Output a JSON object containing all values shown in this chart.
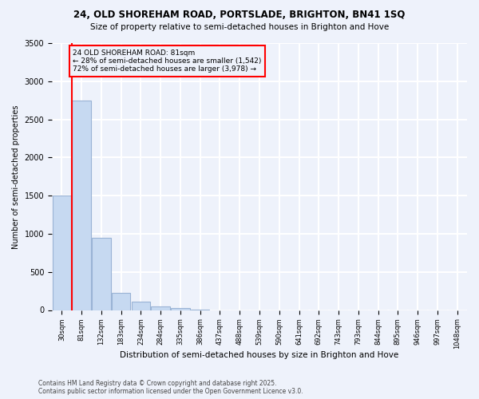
{
  "title1": "24, OLD SHOREHAM ROAD, PORTSLADE, BRIGHTON, BN41 1SQ",
  "title2": "Size of property relative to semi-detached houses in Brighton and Hove",
  "xlabel": "Distribution of semi-detached houses by size in Brighton and Hove",
  "ylabel": "Number of semi-detached properties",
  "bins": [
    "30sqm",
    "81sqm",
    "132sqm",
    "183sqm",
    "234sqm",
    "284sqm",
    "335sqm",
    "386sqm",
    "437sqm",
    "488sqm",
    "539sqm",
    "590sqm",
    "641sqm",
    "692sqm",
    "743sqm",
    "793sqm",
    "844sqm",
    "895sqm",
    "946sqm",
    "997sqm",
    "1048sqm"
  ],
  "values": [
    1500,
    2750,
    950,
    230,
    110,
    50,
    30,
    10,
    0,
    0,
    0,
    0,
    0,
    0,
    0,
    0,
    0,
    0,
    0,
    0,
    0
  ],
  "bar_color": "#c6d9f1",
  "bar_edge_color": "#9ab3d5",
  "property_line_x": 1,
  "annotation_title": "24 OLD SHOREHAM ROAD: 81sqm",
  "annotation_line1": "← 28% of semi-detached houses are smaller (1,542)",
  "annotation_line2": "72% of semi-detached houses are larger (3,978) →",
  "annotation_box_color": "#ff0000",
  "ylim": [
    0,
    3500
  ],
  "yticks": [
    0,
    500,
    1000,
    1500,
    2000,
    2500,
    3000,
    3500
  ],
  "footnote1": "Contains HM Land Registry data © Crown copyright and database right 2025.",
  "footnote2": "Contains public sector information licensed under the Open Government Licence v3.0.",
  "background_color": "#eef2fb",
  "grid_color": "#ffffff"
}
